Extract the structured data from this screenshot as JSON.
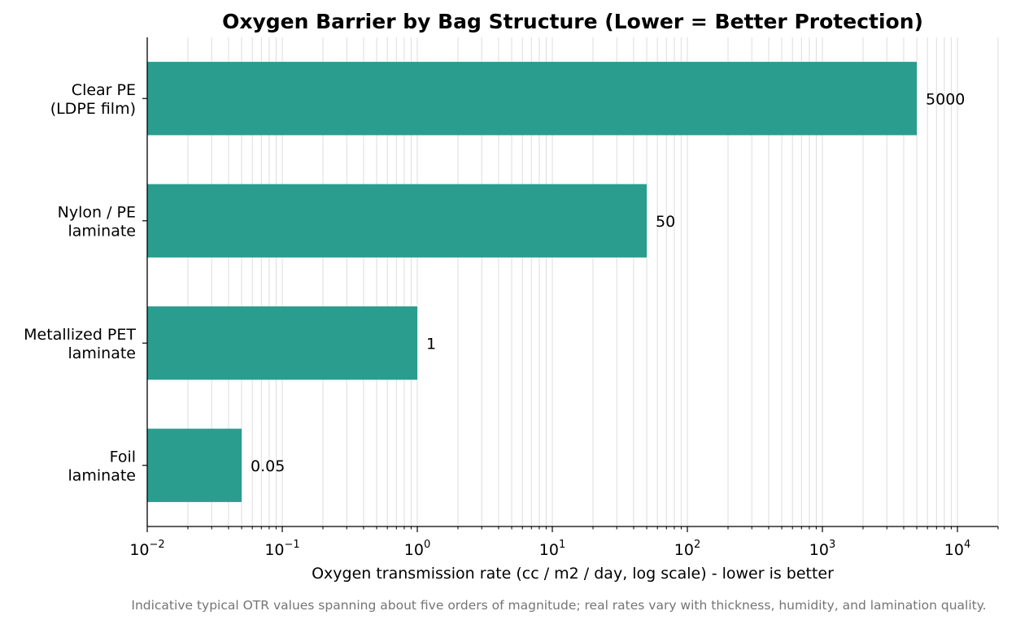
{
  "chart_data": {
    "type": "bar",
    "orientation": "horizontal",
    "title": "Oxygen Barrier by Bag Structure (Lower = Better Protection)",
    "xlabel": "Oxygen transmission rate (cc / m2 / day, log scale) - lower is better",
    "ylabel": "",
    "x_scale": "log",
    "xlim": [
      0.01,
      20000
    ],
    "x_ticks": [
      {
        "base": "10",
        "exp": "−2"
      },
      {
        "base": "10",
        "exp": "−1"
      },
      {
        "base": "10",
        "exp": "0"
      },
      {
        "base": "10",
        "exp": "1"
      },
      {
        "base": "10",
        "exp": "2"
      },
      {
        "base": "10",
        "exp": "3"
      },
      {
        "base": "10",
        "exp": "4"
      }
    ],
    "grid": "vertical, major and minor",
    "bar_color": "#2a9d8f",
    "categories": [
      [
        "Clear PE",
        "(LDPE film)"
      ],
      [
        "Nylon / PE",
        "laminate"
      ],
      [
        "Metallized PET",
        "laminate"
      ],
      [
        "Foil",
        "laminate"
      ]
    ],
    "values": [
      5000,
      50,
      1,
      0.05
    ],
    "value_labels": [
      "5000",
      "50",
      "1",
      "0.05"
    ],
    "footnote": "Indicative typical OTR values spanning about five orders of magnitude; real rates vary with thickness, humidity, and lamination quality."
  }
}
